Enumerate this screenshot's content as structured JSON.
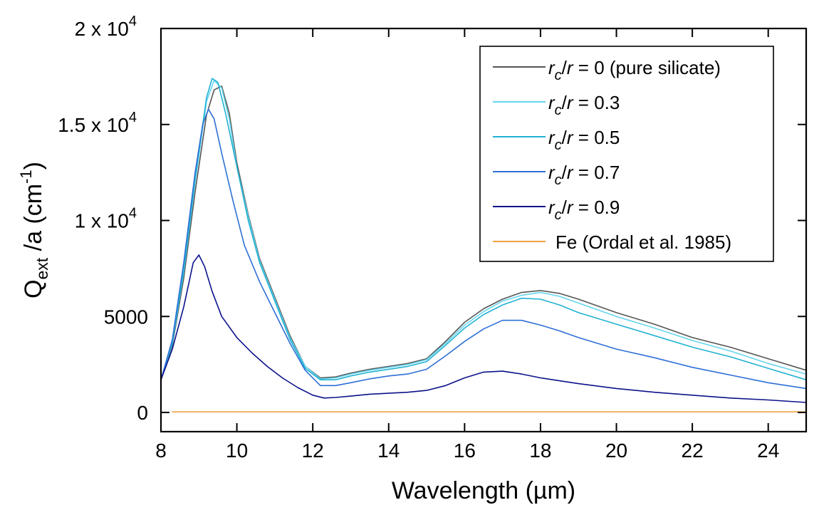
{
  "chart_data": {
    "type": "line",
    "xlabel": "Wavelength (µm)",
    "ylabel": {
      "main": "Q",
      "sub": "ext",
      "rest": " /a (cm",
      "sup": "-1",
      "close": ")"
    },
    "xlim": [
      8,
      25
    ],
    "ylim": [
      -1000,
      20000
    ],
    "x_ticks": [
      8,
      10,
      12,
      14,
      16,
      18,
      20,
      22,
      24
    ],
    "y_ticks": [
      {
        "value": 0,
        "label": "0"
      },
      {
        "value": 5000,
        "label": "5000"
      },
      {
        "value": 10000,
        "base": "1 x 10",
        "exp": "4"
      },
      {
        "value": 15000,
        "base": "1.5 x 10",
        "exp": "4"
      },
      {
        "value": 20000,
        "base": "2 x 10",
        "exp": "4"
      }
    ],
    "grid": false,
    "legend_position": "top-right",
    "series": [
      {
        "name": "r_c/r = 0 (pure silicate)",
        "label": {
          "r": "r",
          "sub": "c",
          "rest": "/r = 0 (pure silicate)"
        },
        "color": "#555555",
        "points": [
          [
            8.0,
            1700
          ],
          [
            8.3,
            3500
          ],
          [
            8.6,
            7000
          ],
          [
            8.9,
            11500
          ],
          [
            9.2,
            15500
          ],
          [
            9.4,
            16800
          ],
          [
            9.6,
            17000
          ],
          [
            9.8,
            15600
          ],
          [
            10.0,
            13000
          ],
          [
            10.3,
            10300
          ],
          [
            10.6,
            8000
          ],
          [
            11.0,
            6000
          ],
          [
            11.4,
            4000
          ],
          [
            11.8,
            2400
          ],
          [
            12.2,
            1800
          ],
          [
            12.6,
            1850
          ],
          [
            13.0,
            2050
          ],
          [
            13.5,
            2250
          ],
          [
            14.0,
            2400
          ],
          [
            14.5,
            2550
          ],
          [
            15.0,
            2800
          ],
          [
            15.5,
            3700
          ],
          [
            16.0,
            4700
          ],
          [
            16.5,
            5400
          ],
          [
            17.0,
            5900
          ],
          [
            17.5,
            6250
          ],
          [
            18.0,
            6350
          ],
          [
            18.5,
            6200
          ],
          [
            19.0,
            5900
          ],
          [
            20.0,
            5200
          ],
          [
            21.0,
            4600
          ],
          [
            22.0,
            3900
          ],
          [
            23.0,
            3400
          ],
          [
            24.0,
            2800
          ],
          [
            25.0,
            2200
          ]
        ]
      },
      {
        "name": "r_c/r = 0.3",
        "label": {
          "r": "r",
          "sub": "c",
          "rest": "/r = 0.3"
        },
        "color": "#66d5ee",
        "points": [
          [
            8.0,
            1700
          ],
          [
            8.3,
            3600
          ],
          [
            8.6,
            7300
          ],
          [
            8.9,
            12000
          ],
          [
            9.2,
            16200
          ],
          [
            9.4,
            17300
          ],
          [
            9.6,
            16900
          ],
          [
            9.8,
            15300
          ],
          [
            10.0,
            12800
          ],
          [
            10.3,
            10200
          ],
          [
            10.6,
            7900
          ],
          [
            11.0,
            5900
          ],
          [
            11.4,
            3900
          ],
          [
            11.8,
            2400
          ],
          [
            12.2,
            1750
          ],
          [
            12.6,
            1800
          ],
          [
            13.0,
            2000
          ],
          [
            13.5,
            2200
          ],
          [
            14.0,
            2350
          ],
          [
            14.5,
            2500
          ],
          [
            15.0,
            2750
          ],
          [
            15.5,
            3600
          ],
          [
            16.0,
            4550
          ],
          [
            16.5,
            5250
          ],
          [
            17.0,
            5800
          ],
          [
            17.5,
            6100
          ],
          [
            18.0,
            6250
          ],
          [
            18.5,
            6050
          ],
          [
            19.0,
            5700
          ],
          [
            20.0,
            5000
          ],
          [
            21.0,
            4400
          ],
          [
            22.0,
            3750
          ],
          [
            23.0,
            3200
          ],
          [
            24.0,
            2550
          ],
          [
            25.0,
            2000
          ]
        ]
      },
      {
        "name": "r_c/r = 0.5",
        "label": {
          "r": "r",
          "sub": "c",
          "rest": "/r = 0.5"
        },
        "color": "#22b2d2",
        "points": [
          [
            8.0,
            1700
          ],
          [
            8.3,
            3600
          ],
          [
            8.6,
            7400
          ],
          [
            8.9,
            12200
          ],
          [
            9.2,
            16400
          ],
          [
            9.35,
            17400
          ],
          [
            9.5,
            17200
          ],
          [
            9.7,
            15600
          ],
          [
            10.0,
            12800
          ],
          [
            10.3,
            10000
          ],
          [
            10.6,
            7800
          ],
          [
            11.0,
            5800
          ],
          [
            11.4,
            3800
          ],
          [
            11.8,
            2300
          ],
          [
            12.2,
            1700
          ],
          [
            12.6,
            1700
          ],
          [
            13.0,
            1900
          ],
          [
            13.5,
            2100
          ],
          [
            14.0,
            2250
          ],
          [
            14.5,
            2400
          ],
          [
            15.0,
            2650
          ],
          [
            15.5,
            3500
          ],
          [
            16.0,
            4400
          ],
          [
            16.5,
            5100
          ],
          [
            17.0,
            5600
          ],
          [
            17.5,
            5950
          ],
          [
            18.0,
            5900
          ],
          [
            18.5,
            5600
          ],
          [
            19.0,
            5200
          ],
          [
            20.0,
            4600
          ],
          [
            21.0,
            4000
          ],
          [
            22.0,
            3400
          ],
          [
            23.0,
            2900
          ],
          [
            24.0,
            2300
          ],
          [
            25.0,
            1700
          ]
        ]
      },
      {
        "name": "r_c/r = 0.7",
        "label": {
          "r": "r",
          "sub": "c",
          "rest": "/r = 0.7"
        },
        "color": "#2e6fd6",
        "points": [
          [
            8.0,
            1700
          ],
          [
            8.3,
            3800
          ],
          [
            8.6,
            7800
          ],
          [
            8.9,
            12500
          ],
          [
            9.1,
            15000
          ],
          [
            9.25,
            15800
          ],
          [
            9.4,
            15300
          ],
          [
            9.6,
            13500
          ],
          [
            9.9,
            11000
          ],
          [
            10.2,
            8700
          ],
          [
            10.6,
            6800
          ],
          [
            11.0,
            5200
          ],
          [
            11.4,
            3600
          ],
          [
            11.8,
            2200
          ],
          [
            12.2,
            1400
          ],
          [
            12.6,
            1400
          ],
          [
            13.0,
            1550
          ],
          [
            13.5,
            1750
          ],
          [
            14.0,
            1900
          ],
          [
            14.5,
            2000
          ],
          [
            15.0,
            2250
          ],
          [
            15.5,
            2950
          ],
          [
            16.0,
            3700
          ],
          [
            16.5,
            4350
          ],
          [
            17.0,
            4800
          ],
          [
            17.5,
            4800
          ],
          [
            18.0,
            4550
          ],
          [
            18.5,
            4250
          ],
          [
            19.0,
            3900
          ],
          [
            20.0,
            3300
          ],
          [
            21.0,
            2850
          ],
          [
            22.0,
            2350
          ],
          [
            23.0,
            1950
          ],
          [
            24.0,
            1550
          ],
          [
            25.0,
            1250
          ]
        ]
      },
      {
        "name": "r_c/r = 0.9",
        "label": {
          "r": "r",
          "sub": "c",
          "rest": "/r = 0.9"
        },
        "color": "#0c128a",
        "points": [
          [
            8.0,
            1700
          ],
          [
            8.3,
            3300
          ],
          [
            8.6,
            5500
          ],
          [
            8.85,
            7800
          ],
          [
            9.0,
            8200
          ],
          [
            9.15,
            7600
          ],
          [
            9.35,
            6300
          ],
          [
            9.6,
            5000
          ],
          [
            10.0,
            3900
          ],
          [
            10.4,
            3100
          ],
          [
            10.8,
            2400
          ],
          [
            11.2,
            1800
          ],
          [
            11.6,
            1300
          ],
          [
            12.0,
            900
          ],
          [
            12.3,
            750
          ],
          [
            12.6,
            780
          ],
          [
            13.0,
            850
          ],
          [
            13.5,
            950
          ],
          [
            14.0,
            1000
          ],
          [
            14.5,
            1050
          ],
          [
            15.0,
            1150
          ],
          [
            15.5,
            1400
          ],
          [
            16.0,
            1800
          ],
          [
            16.5,
            2100
          ],
          [
            17.0,
            2150
          ],
          [
            17.5,
            2000
          ],
          [
            18.0,
            1800
          ],
          [
            18.5,
            1650
          ],
          [
            19.0,
            1500
          ],
          [
            20.0,
            1250
          ],
          [
            21.0,
            1050
          ],
          [
            22.0,
            900
          ],
          [
            23.0,
            750
          ],
          [
            24.0,
            650
          ],
          [
            25.0,
            520
          ]
        ]
      },
      {
        "name": "Fe (Ordal et al. 1985)",
        "label": {
          "r": "",
          "sub": "",
          "rest": "Fe (Ordal et al. 1985)"
        },
        "color": "#f0a040",
        "points": [
          [
            8.3,
            30
          ],
          [
            25.0,
            30
          ]
        ]
      }
    ]
  }
}
